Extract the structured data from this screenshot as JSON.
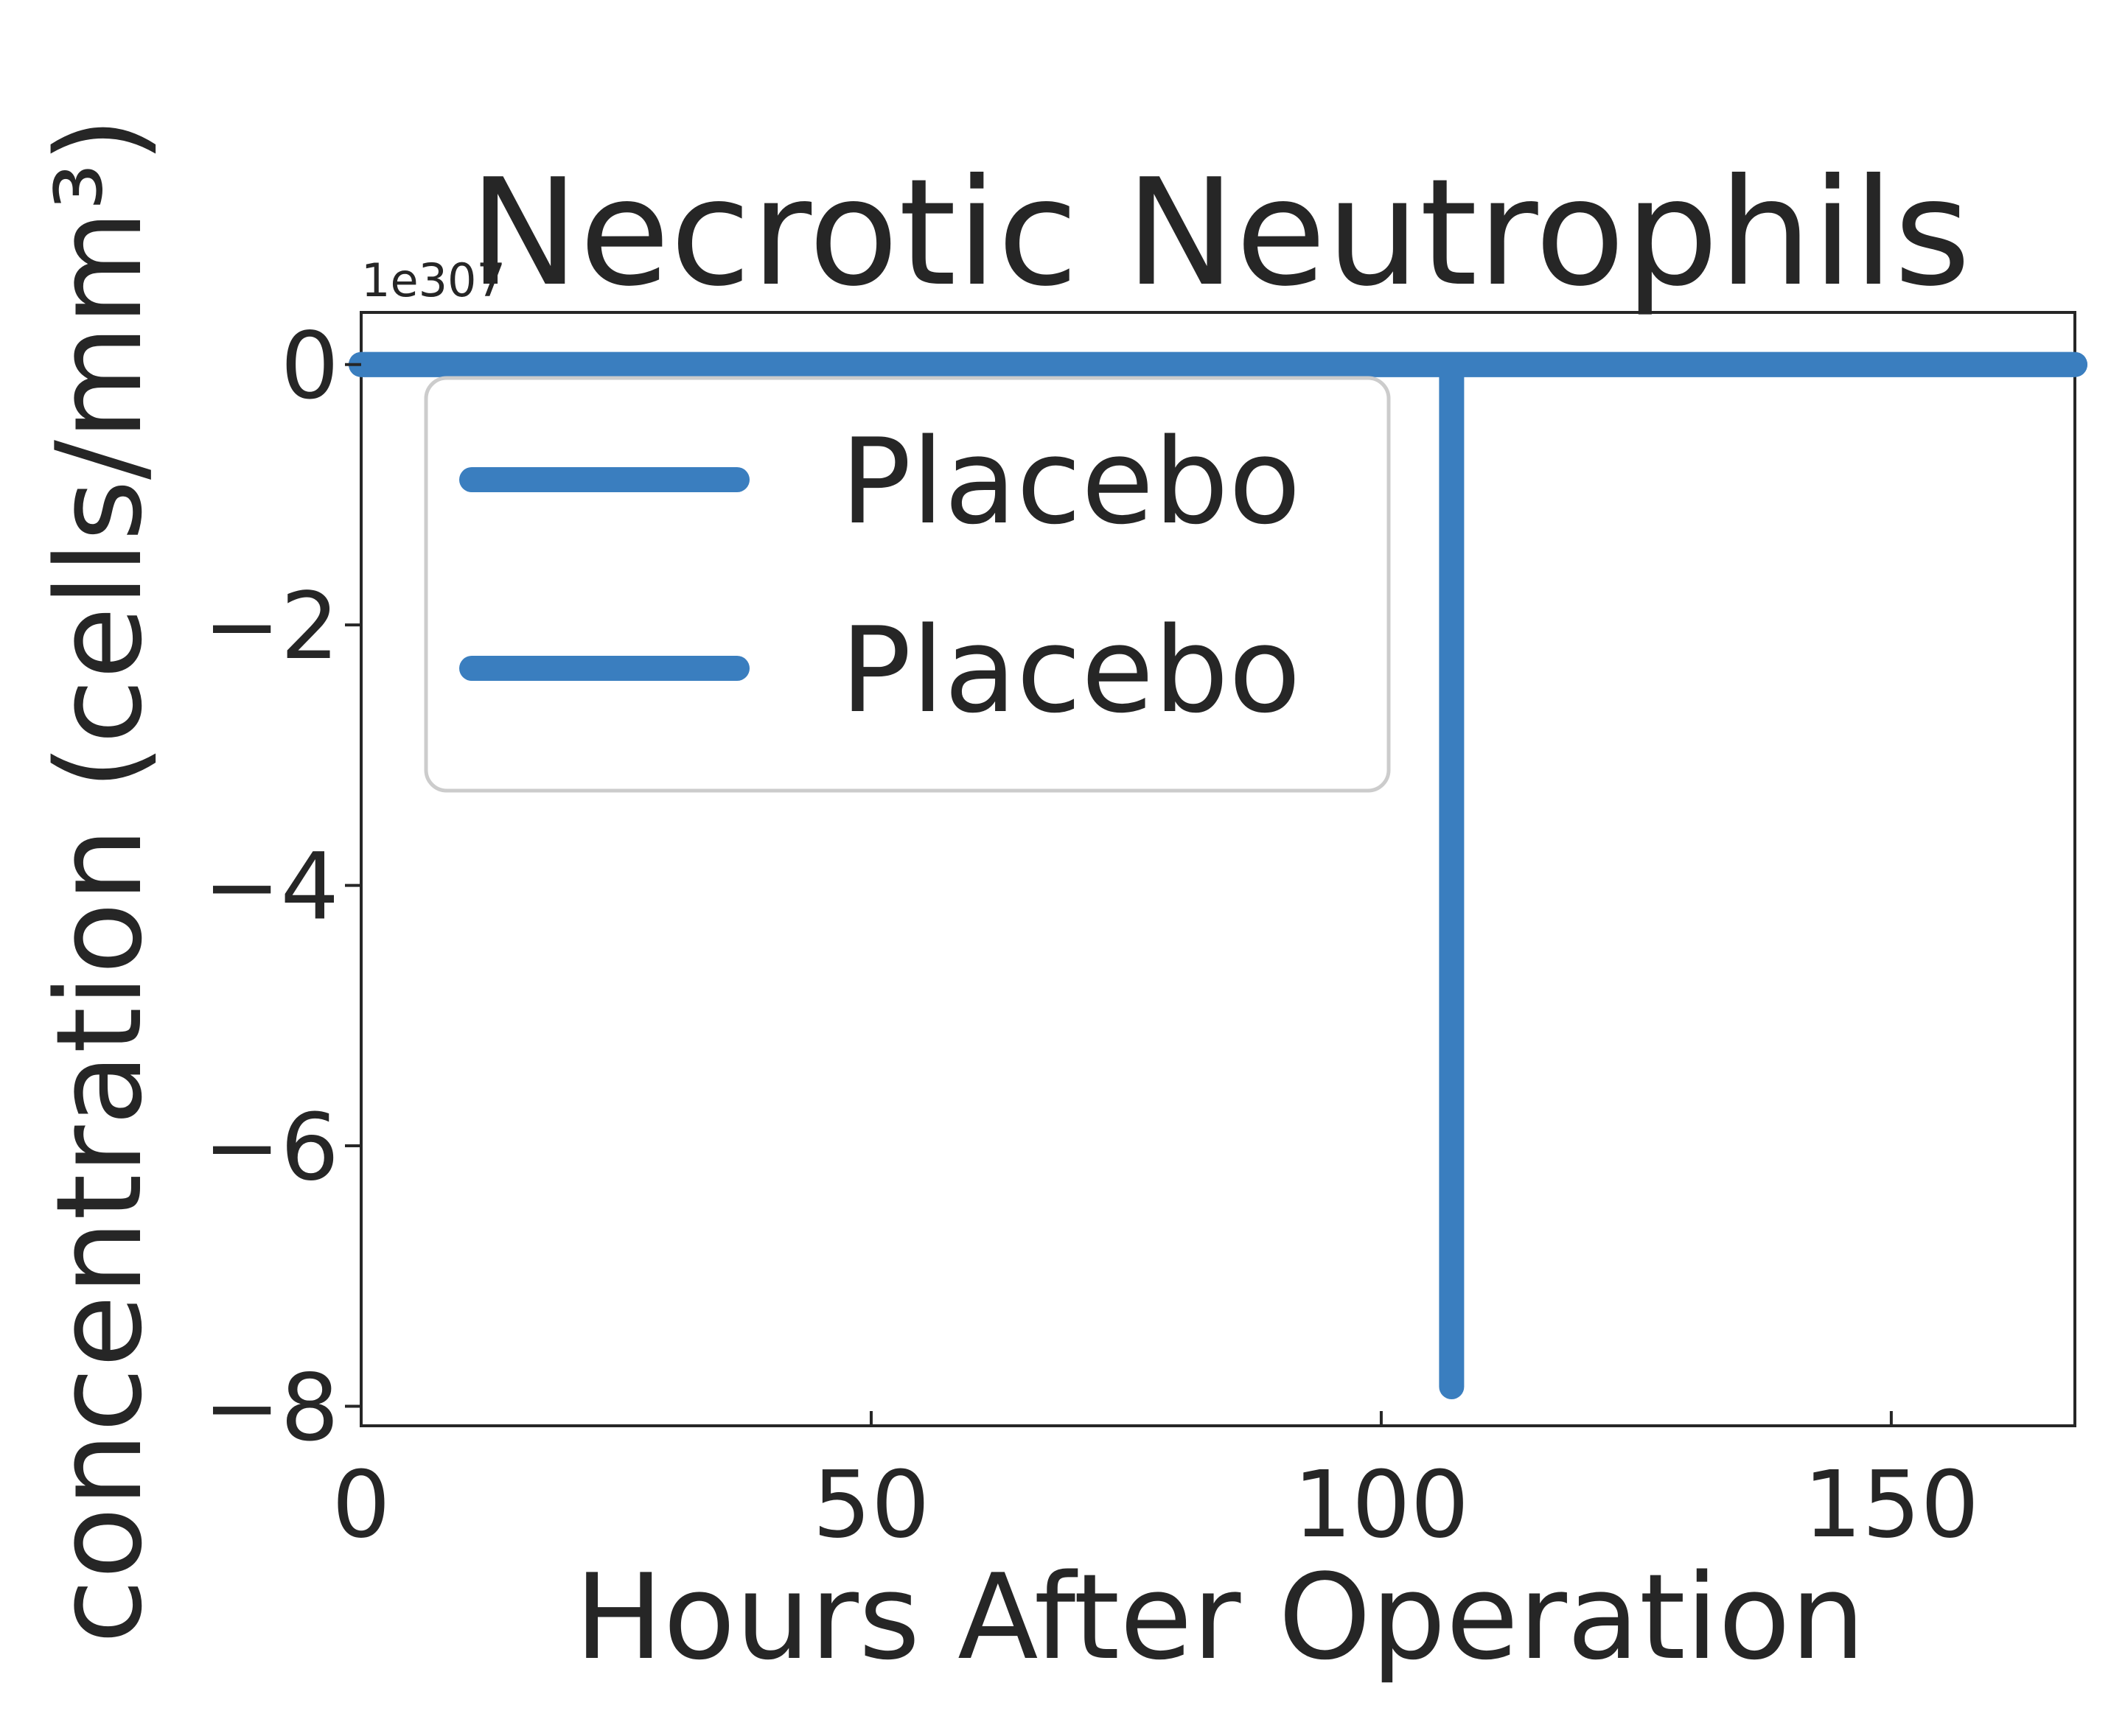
{
  "chart_data": {
    "type": "line",
    "title": "Necrotic Neutrophils",
    "xlabel": "Hours After Operation",
    "ylabel": "concentration (cells/mm³)",
    "y_offset_label": "1e307",
    "xlim": [
      0,
      168
    ],
    "ylim": [
      -8.15,
      0.4
    ],
    "x_ticks": [
      0,
      50,
      100,
      150
    ],
    "y_ticks": [
      0,
      -2,
      -4,
      -6,
      -8
    ],
    "x_tick_labels": [
      "0",
      "50",
      "100",
      "150"
    ],
    "y_tick_labels": [
      "0",
      "−2",
      "−4",
      "−6",
      "−8"
    ],
    "grid": false,
    "legend_position": "upper-left",
    "series": [
      {
        "name": "Placebo",
        "color": "#3a7ebf",
        "points": [
          [
            0,
            0
          ],
          [
            106.9,
            0
          ],
          [
            106.9,
            -7.85
          ],
          [
            106.9,
            0
          ],
          [
            168,
            0
          ]
        ]
      },
      {
        "name": "Placebo",
        "color": "#3a7ebf",
        "points": [
          [
            0,
            0
          ],
          [
            168,
            0
          ]
        ]
      }
    ]
  }
}
